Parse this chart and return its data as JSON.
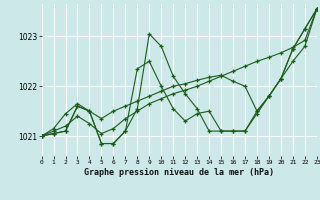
{
  "title": "Graphe pression niveau de la mer (hPa)",
  "bg_color": "#cce8e8",
  "grid_color": "#ffffff",
  "line_color": "#1a5c1a",
  "xlim": [
    0,
    23
  ],
  "ylim": [
    1020.6,
    1023.65
  ],
  "yticks": [
    1021,
    1022,
    1023
  ],
  "series": [
    [
      1021.0,
      1021.05,
      1021.1,
      1021.6,
      1021.5,
      1020.85,
      1020.85,
      1021.1,
      1021.55,
      1023.05,
      1022.8,
      1022.2,
      1021.85,
      1021.55,
      1021.1,
      1021.1,
      1021.1,
      1021.1,
      1021.5,
      1021.8,
      1022.15,
      1022.75,
      1023.15,
      1023.55
    ],
    [
      1021.0,
      1021.05,
      1021.1,
      1021.6,
      1021.5,
      1020.85,
      1020.85,
      1021.1,
      1022.35,
      1022.5,
      1022.0,
      1021.55,
      1021.3,
      1021.45,
      1021.5,
      1021.1,
      1021.1,
      1021.1,
      1021.45,
      1021.8,
      1022.15,
      1022.75,
      1023.15,
      1023.55
    ],
    [
      1021.0,
      1021.1,
      1021.2,
      1021.4,
      1021.25,
      1021.05,
      1021.15,
      1021.35,
      1021.5,
      1021.65,
      1021.75,
      1021.85,
      1021.92,
      1022.0,
      1022.1,
      1022.2,
      1022.3,
      1022.4,
      1022.5,
      1022.58,
      1022.67,
      1022.78,
      1022.92,
      1023.55
    ],
    [
      1021.0,
      1021.15,
      1021.45,
      1021.65,
      1021.5,
      1021.35,
      1021.5,
      1021.6,
      1021.7,
      1021.8,
      1021.9,
      1022.0,
      1022.05,
      1022.12,
      1022.18,
      1022.22,
      1022.1,
      1022.0,
      1021.5,
      1021.8,
      1022.15,
      1022.5,
      1022.8,
      1023.55
    ]
  ]
}
